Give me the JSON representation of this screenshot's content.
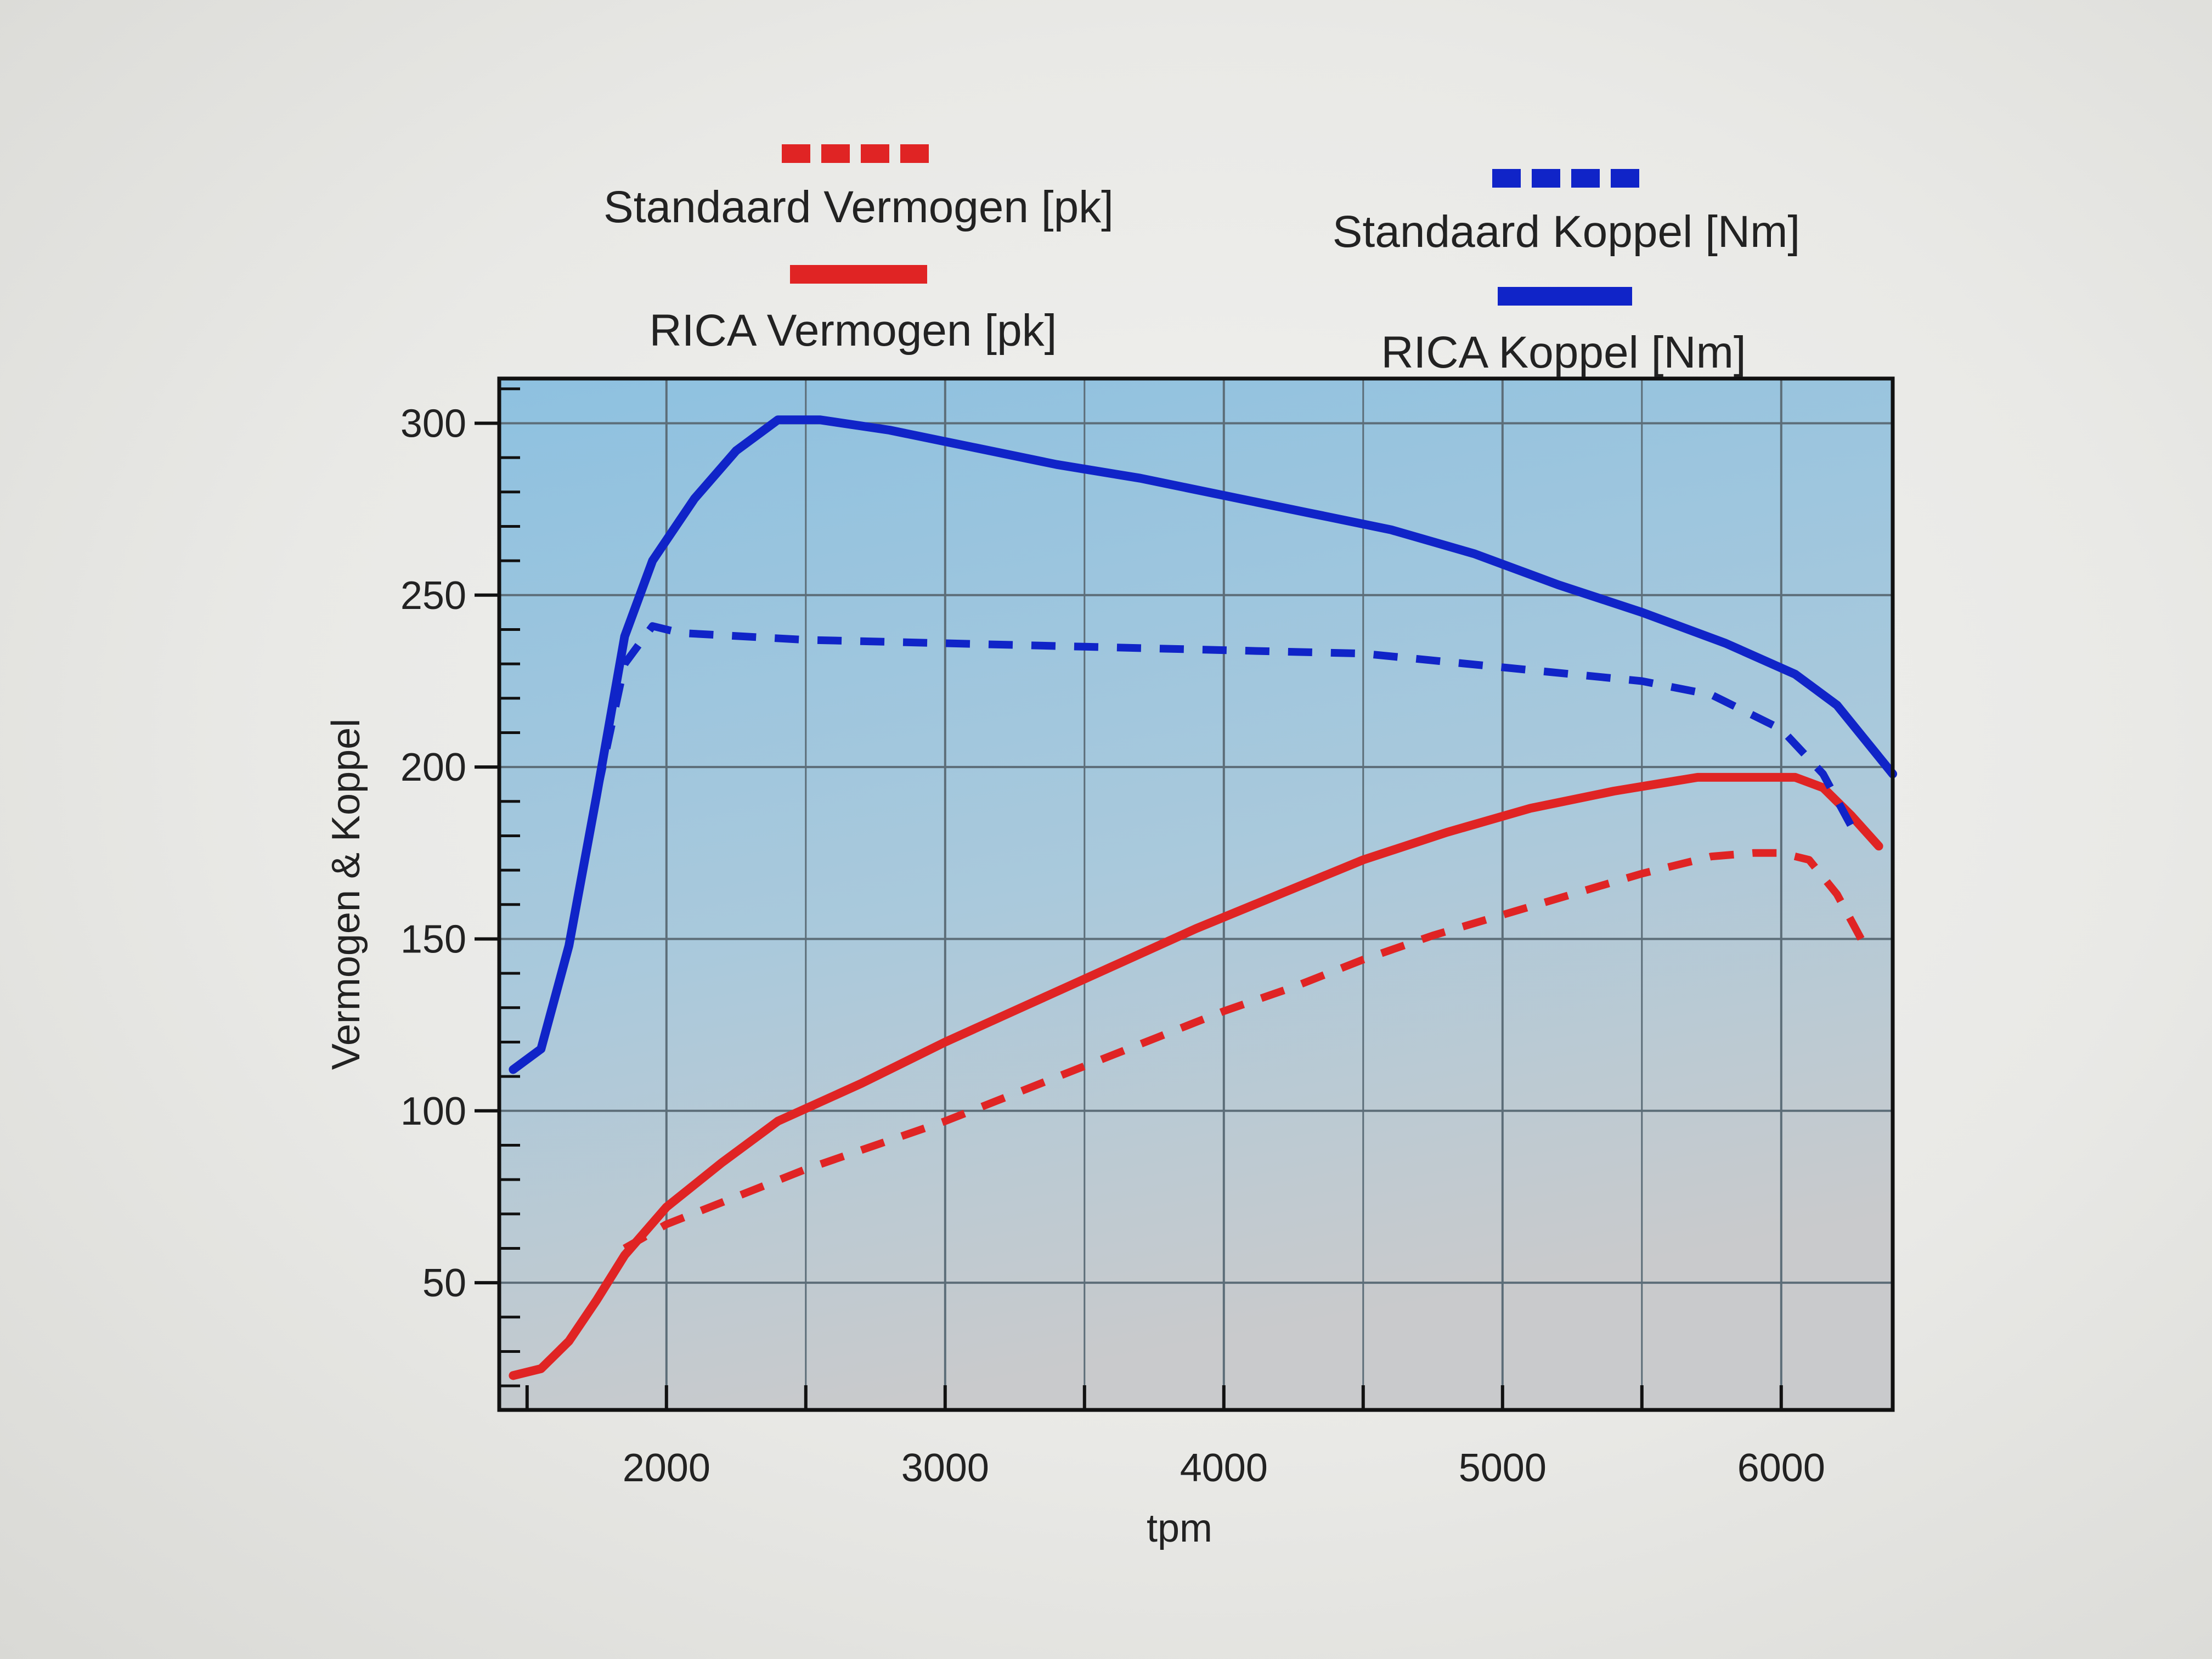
{
  "chart_data": {
    "type": "line",
    "title": "",
    "xlabel": "tpm",
    "ylabel": "Vermogen & Koppel",
    "xlim": [
      1400,
      6400
    ],
    "ylim": [
      13,
      313
    ],
    "xticks": [
      2000,
      3000,
      4000,
      5000,
      6000
    ],
    "yticks": [
      50,
      100,
      150,
      200,
      250,
      300
    ],
    "grid": true,
    "legend_position": "top",
    "colors": {
      "red": "#e02424",
      "blue": "#1024c8",
      "plot_bg_top": "#8ec1e0",
      "plot_bg_bottom": "#c7c9cc"
    },
    "series": [
      {
        "name": "Standaard Vermogen [pk]",
        "style": "dashed",
        "color": "#e02424",
        "x": [
          1850,
          2000,
          2250,
          2500,
          2750,
          3000,
          3250,
          3500,
          3750,
          4000,
          4250,
          4500,
          4750,
          5000,
          5250,
          5500,
          5750,
          5900,
          6000,
          6100,
          6200,
          6300
        ],
        "y": [
          60,
          67,
          75,
          83,
          90,
          97,
          105,
          113,
          121,
          129,
          136,
          144,
          151,
          157,
          163,
          169,
          174,
          175,
          175,
          173,
          163,
          148
        ]
      },
      {
        "name": "RICA Vermogen [pk]",
        "style": "solid",
        "color": "#e02424",
        "x": [
          1450,
          1550,
          1650,
          1750,
          1850,
          2000,
          2200,
          2400,
          2700,
          3000,
          3300,
          3600,
          3900,
          4200,
          4500,
          4800,
          5100,
          5400,
          5700,
          5900,
          6050,
          6150,
          6250,
          6350
        ],
        "y": [
          23,
          25,
          33,
          45,
          58,
          72,
          85,
          97,
          108,
          120,
          131,
          142,
          153,
          163,
          173,
          181,
          188,
          193,
          197,
          197,
          197,
          194,
          186,
          177
        ]
      },
      {
        "name": "Standaard Koppel [Nm]",
        "style": "dashed",
        "color": "#1024c8",
        "x": [
          1450,
          1550,
          1650,
          1750,
          1850,
          1950,
          2050,
          2500,
          3000,
          3500,
          4000,
          4500,
          5000,
          5500,
          5750,
          6000,
          6150,
          6250
        ],
        "y": [
          112,
          118,
          148,
          192,
          230,
          241,
          239,
          237,
          236,
          235,
          234,
          233,
          229,
          225,
          221,
          211,
          198,
          183
        ]
      },
      {
        "name": "RICA Koppel [Nm]",
        "style": "solid",
        "color": "#1024c8",
        "x": [
          1450,
          1550,
          1650,
          1750,
          1850,
          1950,
          2100,
          2250,
          2400,
          2550,
          2800,
          3100,
          3400,
          3700,
          4000,
          4300,
          4600,
          4900,
          5200,
          5500,
          5800,
          6050,
          6200,
          6300,
          6400
        ],
        "y": [
          112,
          118,
          148,
          192,
          238,
          260,
          278,
          292,
          301,
          301,
          298,
          293,
          288,
          284,
          279,
          274,
          269,
          262,
          253,
          245,
          236,
          227,
          218,
          208,
          198
        ]
      }
    ]
  }
}
